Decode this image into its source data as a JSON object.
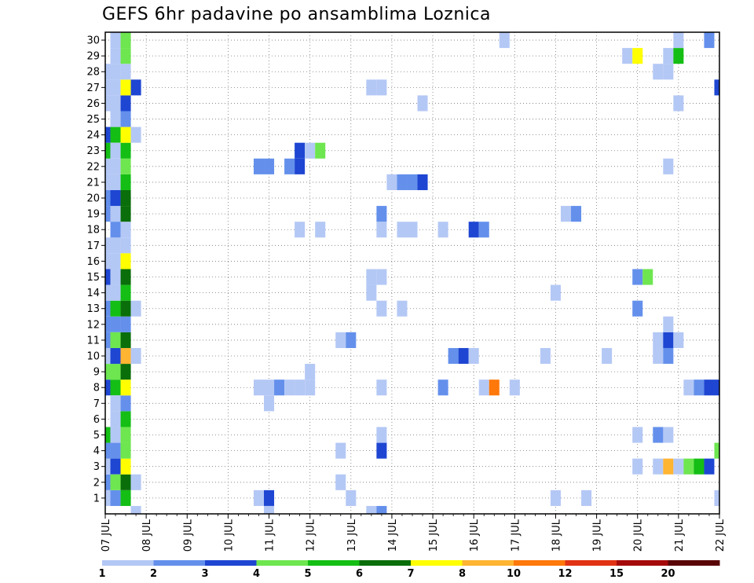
{
  "chart_data": {
    "type": "heatmap",
    "title": "GEFS 6hr padavine po ansamblima Loznica",
    "x_tick_labels": [
      "07 JUL",
      "08 JUL",
      "09 JUL",
      "10 JUL",
      "11 JUL",
      "12 JUL",
      "13 JUL",
      "14 JUL",
      "15 JUL",
      "16 JUL",
      "17 JUL",
      "18 JUL",
      "19 JUL",
      "20 JUL",
      "21 JUL",
      "22 JUL"
    ],
    "y_tick_labels": [
      "1",
      "2",
      "3",
      "4",
      "5",
      "6",
      "7",
      "8",
      "9",
      "10",
      "11",
      "12",
      "13",
      "14",
      "15",
      "16",
      "17",
      "18",
      "19",
      "20",
      "21",
      "22",
      "23",
      "24",
      "25",
      "26",
      "27",
      "28",
      "29",
      "30"
    ],
    "x_unit": "6-hour steps from 07 JUL 00Z",
    "x_range": [
      0,
      60
    ],
    "y_range": [
      1,
      30
    ],
    "grid": true,
    "color_levels": [
      1,
      2,
      3,
      4,
      5,
      6,
      7,
      8,
      10,
      12,
      15,
      20
    ],
    "colors": [
      "#b4c8f5",
      "#6490ec",
      "#1e46d2",
      "#6ee650",
      "#14be14",
      "#0a6e0a",
      "#ffff00",
      "#ffb432",
      "#ff780a",
      "#e13214",
      "#a50a0a",
      "#5a0505"
    ],
    "cells": [
      [
        0,
        1,
        1
      ],
      [
        0,
        2,
        2
      ],
      [
        0,
        3,
        1
      ],
      [
        0,
        4,
        2
      ],
      [
        1,
        4,
        2
      ],
      [
        1,
        3,
        3
      ],
      [
        0,
        5,
        5
      ],
      [
        0,
        8,
        3
      ],
      [
        1,
        8,
        5
      ],
      [
        0,
        9,
        4
      ],
      [
        0,
        10,
        1
      ],
      [
        0,
        11,
        2
      ],
      [
        0,
        12,
        2
      ],
      [
        1,
        12,
        2
      ],
      [
        0,
        13,
        2
      ],
      [
        1,
        13,
        5
      ],
      [
        0,
        14,
        1
      ],
      [
        1,
        14,
        1
      ],
      [
        0,
        15,
        3
      ],
      [
        1,
        15,
        1
      ],
      [
        0,
        16,
        1
      ],
      [
        0,
        17,
        1
      ],
      [
        0,
        19,
        2
      ],
      [
        1,
        19,
        1
      ],
      [
        0,
        20,
        2
      ],
      [
        1,
        20,
        3
      ],
      [
        0,
        21,
        1
      ],
      [
        1,
        21,
        1
      ],
      [
        0,
        22,
        1
      ],
      [
        0,
        23,
        5
      ],
      [
        0,
        24,
        3
      ],
      [
        1,
        24,
        5
      ],
      [
        0,
        26,
        1
      ],
      [
        0,
        27,
        1
      ],
      [
        1,
        27,
        1
      ],
      [
        0,
        28,
        1
      ],
      [
        1,
        28,
        1
      ],
      [
        1,
        1,
        2
      ],
      [
        1,
        2,
        4
      ],
      [
        1,
        5,
        1
      ],
      [
        1,
        6,
        1
      ],
      [
        1,
        7,
        1
      ],
      [
        1,
        9,
        4
      ],
      [
        1,
        10,
        3
      ],
      [
        1,
        11,
        4
      ],
      [
        1,
        16,
        1
      ],
      [
        1,
        17,
        1
      ],
      [
        2,
        17,
        1
      ],
      [
        1,
        18,
        2
      ],
      [
        1,
        22,
        1
      ],
      [
        1,
        23,
        1
      ],
      [
        1,
        25,
        1
      ],
      [
        1,
        26,
        1
      ],
      [
        1,
        29,
        1
      ],
      [
        1,
        30,
        1
      ],
      [
        2,
        1,
        5
      ],
      [
        2,
        2,
        6
      ],
      [
        2,
        3,
        7
      ],
      [
        2,
        4,
        4
      ],
      [
        2,
        5,
        4
      ],
      [
        2,
        6,
        5
      ],
      [
        2,
        7,
        2
      ],
      [
        2,
        8,
        7
      ],
      [
        2,
        9,
        6
      ],
      [
        2,
        10,
        8
      ],
      [
        2,
        11,
        6
      ],
      [
        2,
        12,
        2
      ],
      [
        2,
        13,
        6
      ],
      [
        2,
        14,
        5
      ],
      [
        2,
        15,
        6
      ],
      [
        2,
        16,
        7
      ],
      [
        2,
        18,
        1
      ],
      [
        2,
        19,
        6
      ],
      [
        2,
        20,
        6
      ],
      [
        2,
        21,
        5
      ],
      [
        2,
        22,
        4
      ],
      [
        2,
        23,
        5
      ],
      [
        2,
        24,
        7
      ],
      [
        2,
        25,
        2
      ],
      [
        2,
        26,
        3
      ],
      [
        2,
        27,
        7
      ],
      [
        2,
        28,
        1
      ],
      [
        2,
        29,
        4
      ],
      [
        2,
        30,
        4
      ],
      [
        3,
        0,
        1
      ],
      [
        3,
        2,
        1
      ],
      [
        3,
        10,
        1
      ],
      [
        3,
        13,
        1
      ],
      [
        3,
        24,
        1
      ],
      [
        3,
        27,
        3
      ],
      [
        16,
        8,
        1
      ],
      [
        17,
        8,
        2
      ],
      [
        18,
        8,
        1
      ],
      [
        19,
        8,
        1
      ],
      [
        20,
        8,
        1
      ],
      [
        20,
        9,
        1
      ],
      [
        16,
        7,
        1
      ],
      [
        15,
        8,
        1
      ],
      [
        15,
        1,
        1
      ],
      [
        16,
        1,
        3
      ],
      [
        16,
        0,
        1
      ],
      [
        19,
        18,
        1
      ],
      [
        21,
        18,
        1
      ],
      [
        27,
        18,
        1
      ],
      [
        29,
        18,
        1
      ],
      [
        30,
        18,
        1
      ],
      [
        33,
        18,
        1
      ],
      [
        36,
        18,
        3
      ],
      [
        37,
        18,
        2
      ],
      [
        15,
        22,
        2
      ],
      [
        16,
        22,
        2
      ],
      [
        18,
        22,
        2
      ],
      [
        19,
        22,
        3
      ],
      [
        19,
        23,
        3
      ],
      [
        20,
        23,
        1
      ],
      [
        21,
        23,
        4
      ],
      [
        23,
        2,
        1
      ],
      [
        23,
        4,
        1
      ],
      [
        24,
        1,
        1
      ],
      [
        23,
        11,
        1
      ],
      [
        24,
        11,
        2
      ],
      [
        27,
        4,
        3
      ],
      [
        27,
        5,
        1
      ],
      [
        27,
        8,
        1
      ],
      [
        27,
        13,
        1
      ],
      [
        27,
        19,
        2
      ],
      [
        26,
        14,
        1
      ],
      [
        26,
        15,
        1
      ],
      [
        27,
        15,
        1
      ],
      [
        26,
        27,
        1
      ],
      [
        27,
        27,
        1
      ],
      [
        26,
        0,
        1
      ],
      [
        27,
        0,
        2
      ],
      [
        29,
        13,
        1
      ],
      [
        28,
        21,
        1
      ],
      [
        29,
        21,
        2
      ],
      [
        30,
        21,
        2
      ],
      [
        31,
        21,
        3
      ],
      [
        31,
        26,
        1
      ],
      [
        33,
        8,
        2
      ],
      [
        34,
        10,
        2
      ],
      [
        35,
        10,
        3
      ],
      [
        36,
        10,
        1
      ],
      [
        37,
        8,
        1
      ],
      [
        38,
        8,
        9
      ],
      [
        40,
        8,
        1
      ],
      [
        39,
        30,
        1
      ],
      [
        43,
        10,
        1
      ],
      [
        44,
        1,
        1
      ],
      [
        44,
        14,
        1
      ],
      [
        45,
        19,
        1
      ],
      [
        46,
        19,
        2
      ],
      [
        47,
        1,
        1
      ],
      [
        49,
        10,
        1
      ],
      [
        51,
        29,
        1
      ],
      [
        52,
        29,
        7
      ],
      [
        52,
        3,
        1
      ],
      [
        52,
        5,
        1
      ],
      [
        52,
        13,
        2
      ],
      [
        52,
        15,
        2
      ],
      [
        53,
        15,
        4
      ],
      [
        54,
        3,
        1
      ],
      [
        54,
        28,
        1
      ],
      [
        55,
        28,
        1
      ],
      [
        55,
        3,
        8
      ],
      [
        55,
        5,
        1
      ],
      [
        54,
        5,
        2
      ],
      [
        54,
        10,
        1
      ],
      [
        54,
        11,
        1
      ],
      [
        55,
        10,
        2
      ],
      [
        55,
        11,
        3
      ],
      [
        55,
        12,
        1
      ],
      [
        55,
        22,
        1
      ],
      [
        55,
        29,
        1
      ],
      [
        56,
        3,
        1
      ],
      [
        56,
        11,
        1
      ],
      [
        56,
        26,
        1
      ],
      [
        56,
        29,
        5
      ],
      [
        56,
        30,
        1
      ],
      [
        57,
        3,
        4
      ],
      [
        57,
        8,
        1
      ],
      [
        58,
        3,
        5
      ],
      [
        58,
        8,
        2
      ],
      [
        59,
        3,
        3
      ],
      [
        59,
        8,
        3
      ],
      [
        59,
        30,
        2
      ],
      [
        60,
        1,
        1
      ],
      [
        60,
        4,
        4
      ],
      [
        60,
        8,
        3
      ],
      [
        60,
        27,
        3
      ]
    ]
  }
}
